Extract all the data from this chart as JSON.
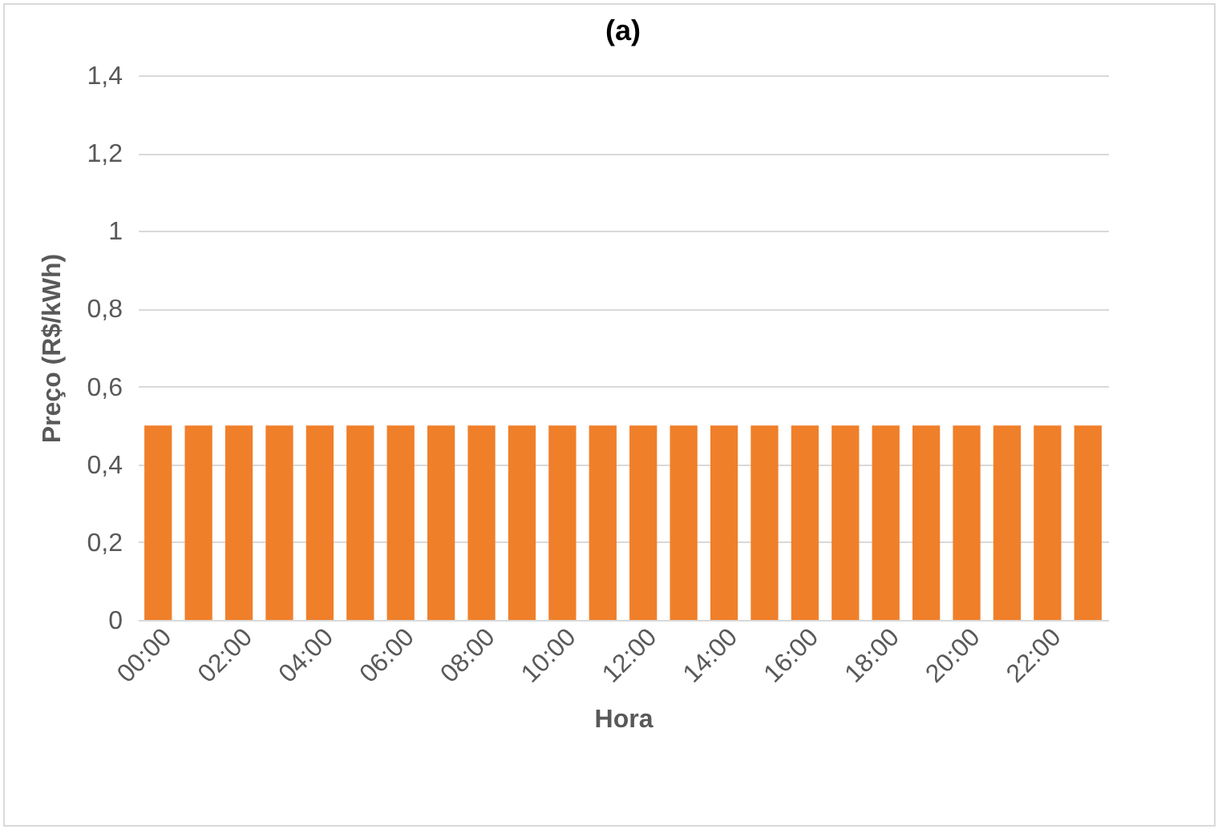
{
  "chart_data": {
    "type": "bar",
    "title": "(a)",
    "xlabel": "Hora",
    "ylabel": "Preço (R$/kWh)",
    "categories": [
      "00:00",
      null,
      "02:00",
      null,
      "04:00",
      null,
      "06:00",
      null,
      "08:00",
      null,
      "10:00",
      null,
      "12:00",
      null,
      "14:00",
      null,
      "16:00",
      null,
      "18:00",
      null,
      "20:00",
      null,
      "22:00",
      null
    ],
    "values": [
      0.5,
      0.5,
      0.5,
      0.5,
      0.5,
      0.5,
      0.5,
      0.5,
      0.5,
      0.5,
      0.5,
      0.5,
      0.5,
      0.5,
      0.5,
      0.5,
      0.5,
      0.5,
      0.5,
      0.5,
      0.5,
      0.5,
      0.5,
      0.5
    ],
    "color": "#f07f2a",
    "ylim": [
      0,
      1.4
    ],
    "yticks": [
      0,
      {
        "value": 0.2,
        "label": "0,2"
      },
      {
        "value": 0.4,
        "label": "0,4"
      },
      {
        "value": 0.6,
        "label": "0,6"
      },
      {
        "value": 0.8,
        "label": "0,8"
      },
      1,
      {
        "value": 1.2,
        "label": "1,2"
      },
      {
        "value": 1.4,
        "label": "1,4"
      }
    ],
    "grid": true
  }
}
